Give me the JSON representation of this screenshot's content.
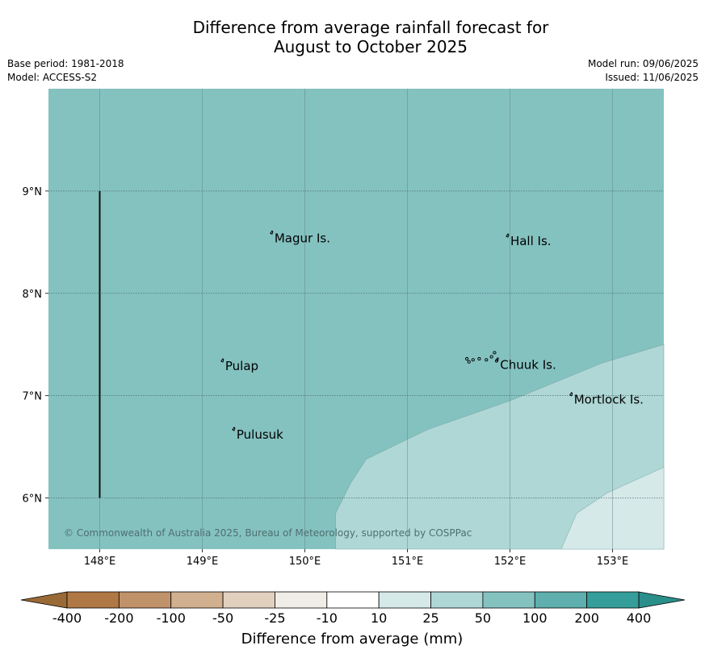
{
  "title": {
    "line1": "Difference from average rainfall forecast for",
    "line2": "August to October 2025"
  },
  "meta": {
    "base_period": "Base period: 1981-2018",
    "model": "Model: ACCESS-S2",
    "model_run": "Model run: 09/06/2025",
    "issued": "Issued: 11/06/2025"
  },
  "map": {
    "lon_range": [
      147.5,
      153.5
    ],
    "lat_range": [
      5.5,
      10.0
    ],
    "x_ticks": [
      "148°E",
      "149°E",
      "150°E",
      "151°E",
      "152°E",
      "153°E"
    ],
    "y_ticks": [
      "6°N",
      "7°N",
      "8°N",
      "9°N"
    ],
    "background_color": "#84c2c0",
    "places": [
      {
        "name": "Magur Is.",
        "lon": 149.68,
        "lat": 8.54
      },
      {
        "name": "Hall Is.",
        "lon": 151.98,
        "lat": 8.51
      },
      {
        "name": "Pulap",
        "lon": 149.2,
        "lat": 7.29
      },
      {
        "name": "Chuuk Is.",
        "lon": 151.88,
        "lat": 7.3
      },
      {
        "name": "Mortlock Is.",
        "lon": 152.6,
        "lat": 6.96
      },
      {
        "name": "Pulusuk",
        "lon": 149.31,
        "lat": 6.62
      }
    ],
    "copyright": "© Commonwealth of Australia 2025, Bureau of Meteorology, supported by COSPPac"
  },
  "colorbar": {
    "labels": [
      "-400",
      "-200",
      "-100",
      "-50",
      "-25",
      "-10",
      "10",
      "25",
      "50",
      "100",
      "200",
      "400"
    ],
    "colors": [
      "#b07844",
      "#c0926a",
      "#d0b08e",
      "#e2d0bf",
      "#f0ede6",
      "#ffffff",
      "#d6e9e9",
      "#aed7d6",
      "#84c2c0",
      "#5eafad",
      "#359e9a"
    ],
    "under_color": "#9a6a36",
    "over_color": "#2a8f8b",
    "title": "Difference from average (mm)"
  }
}
